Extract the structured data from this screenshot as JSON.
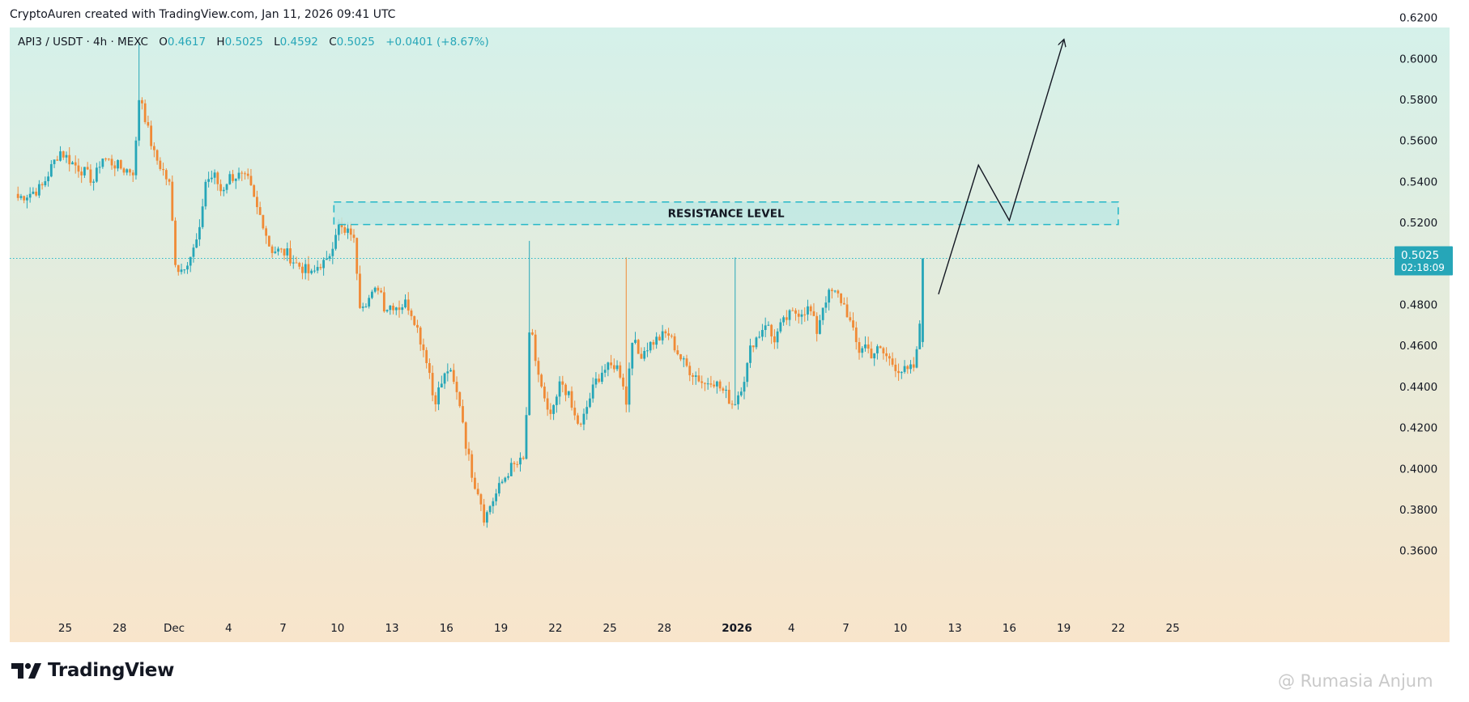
{
  "header": {
    "credit": "CryptoAuren created with TradingView.com, Jan 11, 2026 09:41 UTC"
  },
  "legend": {
    "symbol": "API3 / USDT · 4h · MEXC",
    "open_label": "O",
    "open": "0.4617",
    "high_label": "H",
    "high": "0.5025",
    "low_label": "L",
    "low": "0.4592",
    "close_label": "C",
    "close": "0.5025",
    "change": "+0.0401 (+8.67%)"
  },
  "price_label": {
    "price": "0.5025",
    "countdown": "02:18:09"
  },
  "annotation": {
    "label": "RESISTANCE LEVEL"
  },
  "branding": {
    "logo_text": "TradingView",
    "watermark": "@ Rumasia Anjum"
  },
  "colors": {
    "up": "#26a6b8",
    "down": "#f08a36",
    "resistance_fill": "#bfe7e3",
    "resistance_border": "#26b8c8",
    "price_line": "#26b8c8",
    "arrow": "#131722",
    "gradient_top": "#d5f1ea",
    "gradient_bottom": "#f8e5cb"
  },
  "chart_data": {
    "type": "candlestick",
    "timeframe": "4h",
    "ylim": [
      0.35,
      0.63
    ],
    "yticks": [
      0.36,
      0.38,
      0.4,
      0.42,
      0.44,
      0.46,
      0.48,
      0.5,
      0.52,
      0.54,
      0.56,
      0.58,
      0.6,
      0.62
    ],
    "ytick_labels": [
      "0.3600",
      "0.3800",
      "0.4000",
      "0.4200",
      "0.4400",
      "0.4600",
      "0.4800",
      "0.5000",
      "0.5200",
      "0.5400",
      "0.5600",
      "0.5800",
      "0.6000",
      "0.6200"
    ],
    "xticks": [
      {
        "label": "25",
        "day": 0,
        "bold": false
      },
      {
        "label": "28",
        "day": 3,
        "bold": false
      },
      {
        "label": "Dec",
        "day": 6,
        "bold": false
      },
      {
        "label": "4",
        "day": 9,
        "bold": false
      },
      {
        "label": "7",
        "day": 12,
        "bold": false
      },
      {
        "label": "10",
        "day": 15,
        "bold": false
      },
      {
        "label": "13",
        "day": 18,
        "bold": false
      },
      {
        "label": "16",
        "day": 21,
        "bold": false
      },
      {
        "label": "19",
        "day": 24,
        "bold": false
      },
      {
        "label": "22",
        "day": 27,
        "bold": false
      },
      {
        "label": "25",
        "day": 30,
        "bold": false
      },
      {
        "label": "28",
        "day": 33,
        "bold": false
      },
      {
        "label": "2026",
        "day": 37,
        "bold": true
      },
      {
        "label": "4",
        "day": 40,
        "bold": false
      },
      {
        "label": "7",
        "day": 43,
        "bold": false
      },
      {
        "label": "10",
        "day": 46,
        "bold": false
      },
      {
        "label": "13",
        "day": 49,
        "bold": false
      },
      {
        "label": "16",
        "day": 52,
        "bold": false
      },
      {
        "label": "19",
        "day": 55,
        "bold": false
      },
      {
        "label": "22",
        "day": 58,
        "bold": false
      },
      {
        "label": "25",
        "day": 61,
        "bold": false
      }
    ],
    "series": [
      {
        "ohlc_keypoints_close": [
          [
            -2.6,
            0.532
          ],
          [
            -2.0,
            0.534
          ],
          [
            -1.3,
            0.537
          ],
          [
            -0.7,
            0.548
          ],
          [
            -0.3,
            0.555
          ],
          [
            0.4,
            0.549
          ],
          [
            1.0,
            0.545
          ],
          [
            1.6,
            0.54
          ],
          [
            2.0,
            0.552
          ],
          [
            2.6,
            0.549
          ],
          [
            3.2,
            0.546
          ],
          [
            3.8,
            0.545
          ],
          [
            4.1,
            0.585
          ],
          [
            4.5,
            0.567
          ],
          [
            4.9,
            0.553
          ],
          [
            5.4,
            0.545
          ],
          [
            5.8,
            0.537
          ],
          [
            6.0,
            0.503
          ],
          [
            6.3,
            0.496
          ],
          [
            6.6,
            0.5
          ],
          [
            7.0,
            0.505
          ],
          [
            7.4,
            0.515
          ],
          [
            7.7,
            0.54
          ],
          [
            8.2,
            0.543
          ],
          [
            8.6,
            0.535
          ],
          [
            9.0,
            0.542
          ],
          [
            9.5,
            0.543
          ],
          [
            10.1,
            0.54
          ],
          [
            10.5,
            0.528
          ],
          [
            10.9,
            0.52
          ],
          [
            11.3,
            0.507
          ],
          [
            11.8,
            0.506
          ],
          [
            12.2,
            0.505
          ],
          [
            12.7,
            0.5
          ],
          [
            13.2,
            0.497
          ],
          [
            13.6,
            0.494
          ],
          [
            14.0,
            0.5
          ],
          [
            14.4,
            0.5
          ],
          [
            14.8,
            0.512
          ],
          [
            15.0,
            0.52
          ],
          [
            15.4,
            0.514
          ],
          [
            15.8,
            0.516
          ],
          [
            16.0,
            0.505
          ],
          [
            16.2,
            0.481
          ],
          [
            16.6,
            0.482
          ],
          [
            17.0,
            0.485
          ],
          [
            17.3,
            0.49
          ],
          [
            17.6,
            0.478
          ],
          [
            18.0,
            0.48
          ],
          [
            18.4,
            0.479
          ],
          [
            18.8,
            0.481
          ],
          [
            19.2,
            0.474
          ],
          [
            19.6,
            0.462
          ],
          [
            20.0,
            0.451
          ],
          [
            20.3,
            0.432
          ],
          [
            20.7,
            0.441
          ],
          [
            21.1,
            0.449
          ],
          [
            21.4,
            0.441
          ],
          [
            21.8,
            0.43
          ],
          [
            22.1,
            0.41
          ],
          [
            22.5,
            0.394
          ],
          [
            22.8,
            0.388
          ],
          [
            23.1,
            0.375
          ],
          [
            23.4,
            0.382
          ],
          [
            23.7,
            0.387
          ],
          [
            24.1,
            0.394
          ],
          [
            24.5,
            0.4
          ],
          [
            24.9,
            0.402
          ],
          [
            25.3,
            0.404
          ],
          [
            25.6,
            0.471
          ],
          [
            25.9,
            0.453
          ],
          [
            26.2,
            0.44
          ],
          [
            26.6,
            0.425
          ],
          [
            26.9,
            0.428
          ],
          [
            27.3,
            0.443
          ],
          [
            27.7,
            0.436
          ],
          [
            28.0,
            0.426
          ],
          [
            28.4,
            0.42
          ],
          [
            28.8,
            0.432
          ],
          [
            29.2,
            0.442
          ],
          [
            29.6,
            0.448
          ],
          [
            30.0,
            0.449
          ],
          [
            30.3,
            0.451
          ],
          [
            30.7,
            0.444
          ],
          [
            30.9,
            0.431
          ],
          [
            31.2,
            0.465
          ],
          [
            31.6,
            0.455
          ],
          [
            32.0,
            0.459
          ],
          [
            32.4,
            0.462
          ],
          [
            32.8,
            0.464
          ],
          [
            33.2,
            0.466
          ],
          [
            33.6,
            0.459
          ],
          [
            34.0,
            0.452
          ],
          [
            34.4,
            0.448
          ],
          [
            34.8,
            0.445
          ],
          [
            35.2,
            0.441
          ],
          [
            35.6,
            0.444
          ],
          [
            36.0,
            0.44
          ],
          [
            36.4,
            0.436
          ],
          [
            36.8,
            0.431
          ],
          [
            37.1,
            0.437
          ],
          [
            37.5,
            0.447
          ],
          [
            37.8,
            0.461
          ],
          [
            38.2,
            0.465
          ],
          [
            38.6,
            0.472
          ],
          [
            39.0,
            0.462
          ],
          [
            39.4,
            0.469
          ],
          [
            39.8,
            0.474
          ],
          [
            40.2,
            0.476
          ],
          [
            40.6,
            0.477
          ],
          [
            41.0,
            0.478
          ],
          [
            41.4,
            0.467
          ],
          [
            41.8,
            0.482
          ],
          [
            42.2,
            0.486
          ],
          [
            42.6,
            0.484
          ],
          [
            43.0,
            0.478
          ],
          [
            43.4,
            0.466
          ],
          [
            43.7,
            0.457
          ],
          [
            44.0,
            0.461
          ],
          [
            44.4,
            0.456
          ],
          [
            44.8,
            0.458
          ],
          [
            45.2,
            0.455
          ],
          [
            45.6,
            0.451
          ],
          [
            46.0,
            0.448
          ],
          [
            46.4,
            0.447
          ],
          [
            46.8,
            0.45
          ],
          [
            47.0,
            0.462
          ],
          [
            47.3,
            0.5025
          ]
        ]
      }
    ],
    "current_price": 0.5025,
    "resistance_zone": {
      "y_low": 0.519,
      "y_high": 0.53,
      "day_from": 14.8,
      "day_to": 58.0
    },
    "projection_path": [
      [
        48.1,
        0.485
      ],
      [
        50.3,
        0.548
      ],
      [
        52.0,
        0.521
      ],
      [
        55.0,
        0.609
      ]
    ]
  }
}
